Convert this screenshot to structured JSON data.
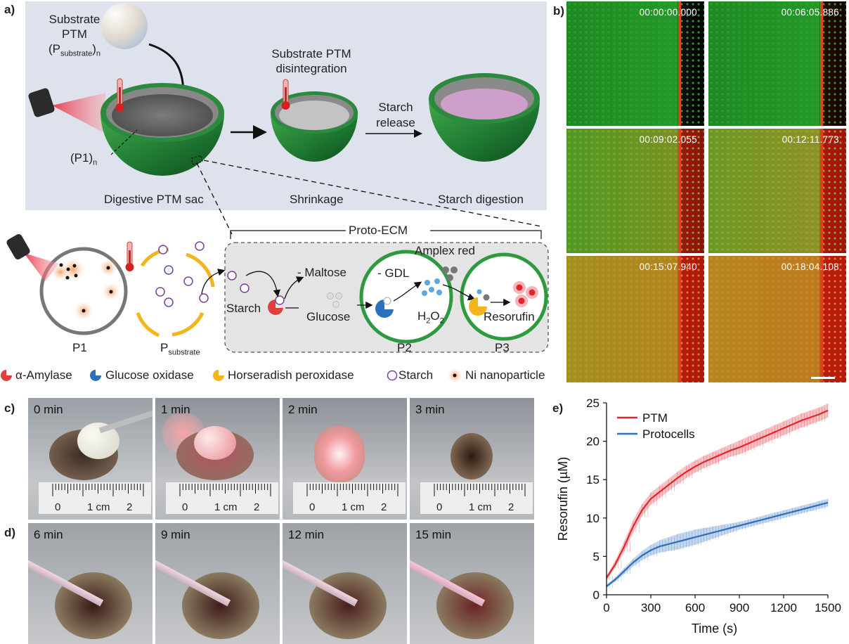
{
  "panel_a": {
    "label": "a)",
    "substrate_title_1": "Substrate",
    "substrate_title_2": "PTM",
    "substrate_title_3a": "(P",
    "substrate_title_3sub": "substrate",
    "substrate_title_3b": ")",
    "substrate_title_3subn": "n",
    "disintegration_1": "Substrate PTM",
    "disintegration_2": "disintegration",
    "starch_release_1": "Starch",
    "starch_release_2": "release",
    "p1n_a": "(P1)",
    "p1n_sub": "n",
    "sac_label": "Digestive PTM sac",
    "shrinkage_label": "Shrinkage",
    "digestion_label": "Starch digestion",
    "proto_ecm": "Proto-ECM",
    "amplex_red": "Amplex red",
    "maltose": "- Maltose",
    "gdl": "- GDL",
    "starch": "Starch",
    "glucose": "Glucose",
    "h2o2_a": "H",
    "h2o2_s1": "2",
    "h2o2_b": "O",
    "h2o2_s2": "2",
    "resorufin": "Resorufin",
    "p1": "P1",
    "psub_a": "P",
    "psub_sub": "substrate",
    "p2": "P2",
    "p3": "P3",
    "legend": {
      "amylase": "α-Amylase",
      "gox": "Glucose oxidase",
      "hrp": "Horseradish peroxidase",
      "starch": "Starch",
      "ni": "Ni nanoparticle"
    }
  },
  "panel_b": {
    "label": "b)",
    "timestamps": [
      "00:00:00.000",
      "00:06:05.886",
      "00:09:02.055",
      "00:12:11.773",
      "00:15:07.940",
      "00:18:04.108"
    ]
  },
  "panel_c": {
    "label": "c)",
    "times": [
      "0 min",
      "1 min",
      "2 min",
      "3 min"
    ],
    "ruler_labels": [
      "0",
      "1 cm",
      "2"
    ]
  },
  "panel_d": {
    "label": "d)",
    "times": [
      "6 min",
      "9 min",
      "12 min",
      "15 min"
    ]
  },
  "panel_e": {
    "label": "e)"
  },
  "chart_data": {
    "type": "line",
    "xlabel": "Time (s)",
    "ylabel": "Resorufin (µM)",
    "xlim": [
      0,
      1500
    ],
    "ylim": [
      0,
      25
    ],
    "xticks": [
      "0",
      "300",
      "600",
      "900",
      "1200",
      "1500"
    ],
    "yticks": [
      "0",
      "5",
      "10",
      "15",
      "20",
      "25"
    ],
    "legend_position": "top-left",
    "grid": false,
    "x": [
      0,
      60,
      120,
      180,
      240,
      300,
      360,
      420,
      480,
      540,
      600,
      660,
      720,
      780,
      840,
      900,
      960,
      1020,
      1080,
      1140,
      1200,
      1260,
      1320,
      1380,
      1440,
      1500
    ],
    "series": [
      {
        "name": "PTM",
        "color": "#e0252d",
        "values": [
          2.2,
          4.0,
          6.3,
          8.9,
          11.0,
          12.5,
          13.4,
          14.3,
          15.2,
          16.0,
          16.7,
          17.3,
          17.8,
          18.3,
          18.8,
          19.2,
          19.7,
          20.2,
          20.7,
          21.2,
          21.7,
          22.2,
          22.7,
          23.1,
          23.5,
          24.0
        ],
        "err": [
          0.3,
          0.5,
          0.7,
          0.8,
          0.8,
          0.8,
          0.8,
          0.8,
          0.8,
          0.8,
          0.8,
          0.8,
          0.8,
          0.8,
          0.8,
          0.9,
          0.9,
          0.9,
          0.9,
          0.9,
          0.9,
          0.9,
          0.9,
          0.9,
          0.9,
          0.9
        ]
      },
      {
        "name": "Protocells",
        "color": "#2e6fba",
        "values": [
          1.1,
          2.0,
          3.1,
          4.2,
          5.1,
          5.8,
          6.3,
          6.6,
          6.9,
          7.2,
          7.5,
          7.8,
          8.1,
          8.4,
          8.7,
          9.0,
          9.3,
          9.6,
          9.9,
          10.2,
          10.5,
          10.8,
          11.1,
          11.4,
          11.7,
          12.0
        ],
        "err": [
          0.2,
          0.3,
          0.4,
          0.5,
          0.6,
          0.7,
          0.8,
          0.9,
          1.0,
          1.0,
          1.0,
          0.9,
          0.8,
          0.7,
          0.6,
          0.5,
          0.5,
          0.5,
          0.5,
          0.5,
          0.5,
          0.5,
          0.5,
          0.5,
          0.5,
          0.5
        ]
      }
    ]
  }
}
